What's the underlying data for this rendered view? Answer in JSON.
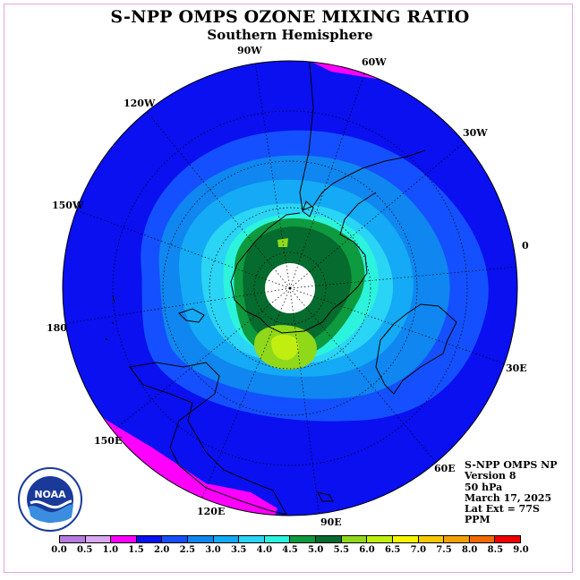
{
  "title": "S-NPP OMPS OZONE MIXING RATIO",
  "subtitle": "Southern Hemisphere",
  "lon_labels": [
    "0",
    "30E",
    "60E",
    "90E",
    "120E",
    "150E",
    "180",
    "150W",
    "120W",
    "90W",
    "60W",
    "30W"
  ],
  "info": {
    "line1": "S-NPP OMPS NP",
    "line2": "Version 8",
    "line3": "50 hPa",
    "line4": "March 17, 2025",
    "line5": "Lat Ext = 77S",
    "line6": "PPM"
  },
  "colorbar": {
    "ticks": [
      "0.0",
      "0.5",
      "1.0",
      "1.5",
      "2.0",
      "2.5",
      "3.0",
      "3.5",
      "4.0",
      "4.5",
      "5.0",
      "5.5",
      "6.0",
      "6.5",
      "7.0",
      "7.5",
      "8.0",
      "8.5",
      "9.0"
    ],
    "colors": [
      "#b57be0",
      "#d9a8ee",
      "#ff00ff",
      "#0a10f0",
      "#1450ff",
      "#0f86f0",
      "#14aaf5",
      "#2ad4f5",
      "#2cf3dc",
      "#0e9a3e",
      "#066b2e",
      "#8fd81a",
      "#c0ee10",
      "#f7f700",
      "#f5c800",
      "#f5a000",
      "#f56a00",
      "#f00000",
      "#805040"
    ]
  },
  "logo_text": "NOAA",
  "colors": {
    "ocean_background": "#0a10f0",
    "land_outline": "#000000"
  }
}
